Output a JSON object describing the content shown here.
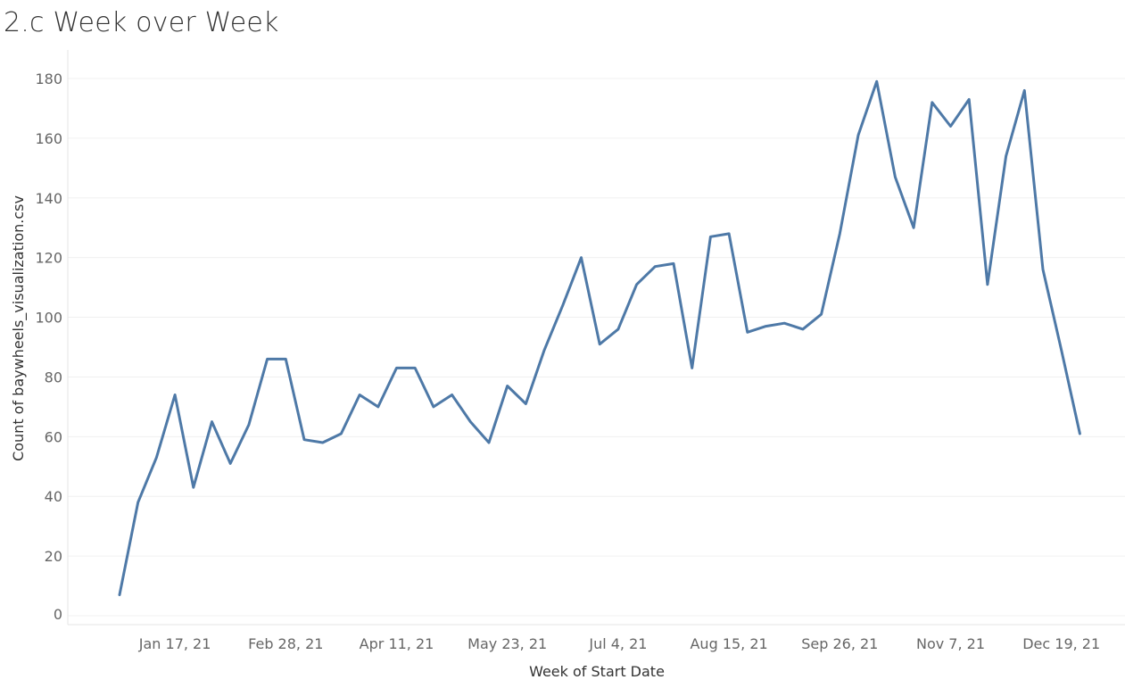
{
  "chart_data": {
    "type": "line",
    "title": "2.c Week over Week",
    "xlabel": "Week of Start Date",
    "ylabel": "Count of baywheels_visualization.csv",
    "x_tick_labels": [
      "Jan 17, 21",
      "Feb 28, 21",
      "Apr 11, 21",
      "May 23, 21",
      "Jul 4, 21",
      "Aug 15, 21",
      "Sep 26, 21",
      "Nov 7, 21",
      "Dec 19, 21"
    ],
    "y_ticks": [
      0,
      20,
      40,
      60,
      80,
      100,
      120,
      140,
      160,
      180
    ],
    "ylim": [
      0,
      180
    ],
    "grid": true,
    "color": "#4e79a7",
    "series": [
      {
        "values": [
          7,
          38,
          53,
          74,
          43,
          65,
          51,
          64,
          86,
          86,
          59,
          58,
          61,
          74,
          70,
          83,
          83,
          70,
          74,
          65,
          58,
          77,
          71,
          89,
          104,
          120,
          91,
          96,
          111,
          117,
          118,
          83,
          127,
          128,
          95,
          97,
          98,
          96,
          101,
          128,
          161,
          179,
          147,
          130,
          172,
          164,
          173,
          111,
          154,
          176,
          116,
          89,
          61
        ]
      }
    ]
  }
}
